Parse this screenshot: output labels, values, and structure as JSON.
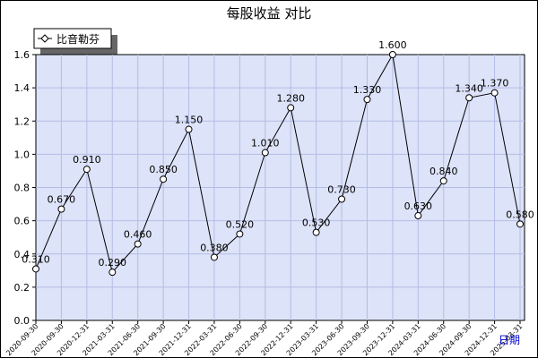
{
  "chart_data": {
    "type": "line",
    "title": "每股收益  对比",
    "xlabel": "日期",
    "ylabel": "",
    "ylim": [
      0,
      1.6
    ],
    "yticks": [
      "0.0",
      "0.2",
      "0.4",
      "0.6",
      "0.8",
      "1.0",
      "1.2",
      "1.4",
      "1.6"
    ],
    "grid": true,
    "legend_position": "top-left",
    "categories": [
      "2020-09-30",
      "2020-09-30",
      "2020-12-31",
      "2021-03-31",
      "2021-06-30",
      "2021-09-30",
      "2021-12-31",
      "2022-03-31",
      "2022-06-30",
      "2022-09-30",
      "2022-12-31",
      "2023-03-31",
      "2023-06-30",
      "2023-09-30",
      "2023-12-31",
      "2024-03-31",
      "2024-06-30",
      "2024-09-30",
      "2024-12-31",
      "2025-03-31"
    ],
    "series": [
      {
        "name": "比音勒芬",
        "values": [
          0.31,
          0.67,
          0.91,
          0.29,
          0.46,
          0.85,
          1.15,
          0.38,
          0.52,
          1.01,
          1.28,
          0.53,
          0.73,
          1.33,
          1.6,
          0.63,
          0.84,
          1.34,
          1.37,
          0.58
        ],
        "labels": [
          "0.310",
          "0.670",
          "0.910",
          "0.290",
          "0.460",
          "0.850",
          "1.150",
          "0.380",
          "0.520",
          "1.010",
          "1.280",
          "0.530",
          "0.730",
          "1.330",
          "1.600",
          "0.630",
          "0.840",
          "1.340",
          "1.370",
          "0.580"
        ]
      }
    ],
    "colors": {
      "plot_background": "#dde3f8",
      "grid": "#b4bde6",
      "line": "#000000",
      "axis_label": "#0000cc"
    }
  }
}
